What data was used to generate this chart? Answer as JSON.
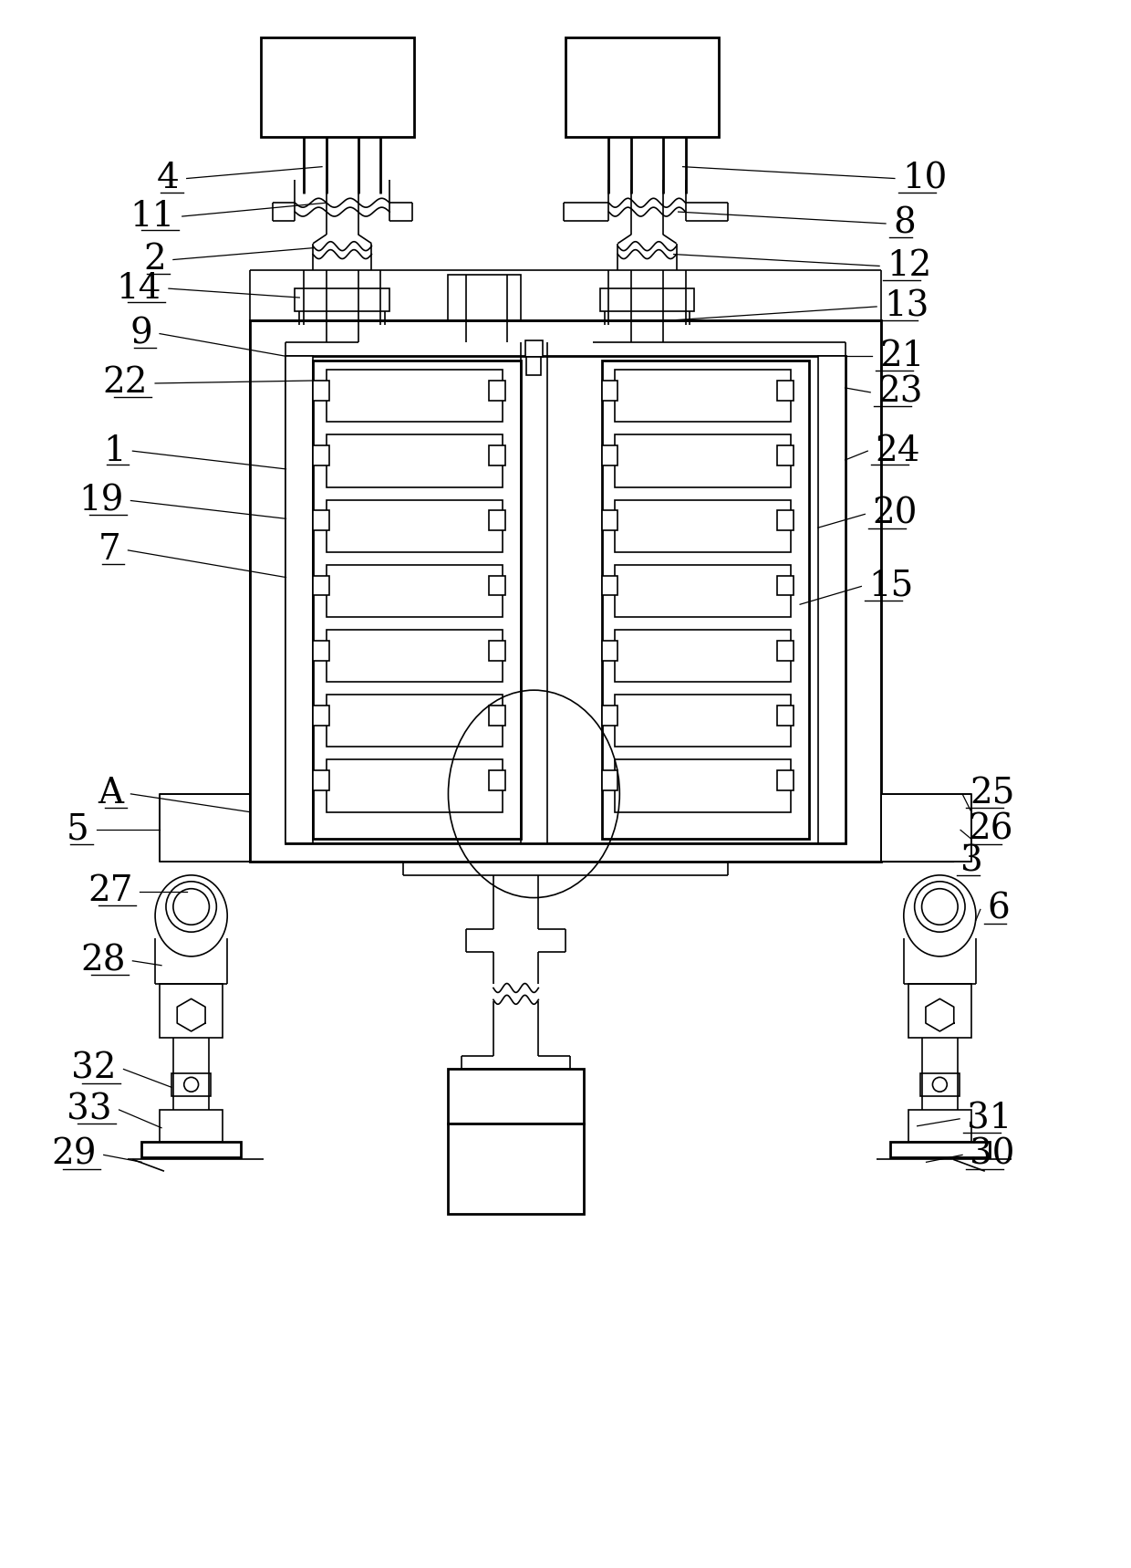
{
  "bg_color": "#ffffff",
  "lc": "#000000",
  "lw": 1.2,
  "tlw": 2.0,
  "fig_width": 12.4,
  "fig_height": 17.18
}
